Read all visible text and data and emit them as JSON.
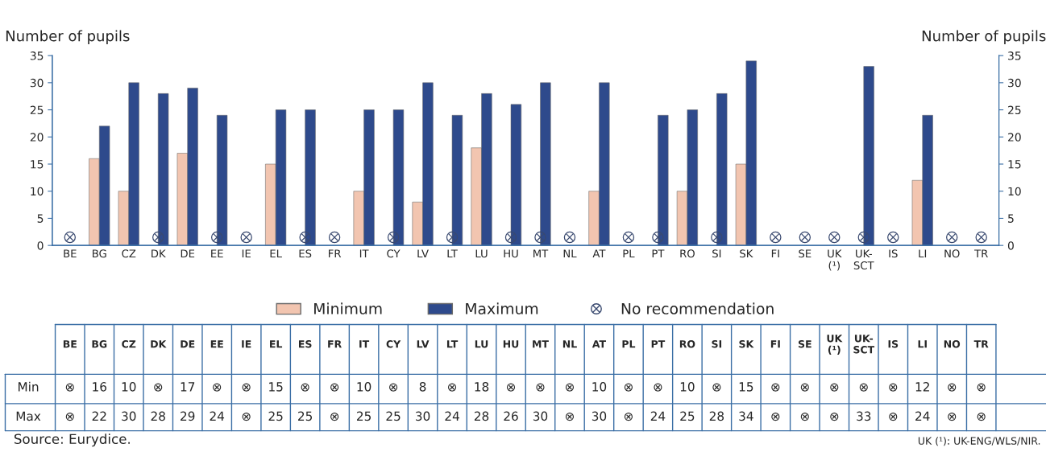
{
  "chart_data": {
    "type": "bar",
    "ylabel": "Number of pupils",
    "y2label": "Number of pupils",
    "categories": [
      "BE",
      "BG",
      "CZ",
      "DK",
      "DE",
      "EE",
      "IE",
      "EL",
      "ES",
      "FR",
      "IT",
      "CY",
      "LV",
      "LT",
      "LU",
      "HU",
      "MT",
      "NL",
      "AT",
      "PL",
      "PT",
      "RO",
      "SI",
      "SK",
      "FI",
      "SE",
      "UK (¹)",
      "UK-SCT",
      "IS",
      "LI",
      "NO",
      "TR"
    ],
    "series": [
      {
        "name": "Minimum",
        "color": "#f2c5b0",
        "values": [
          null,
          16,
          10,
          null,
          17,
          null,
          null,
          15,
          null,
          null,
          10,
          null,
          8,
          null,
          18,
          null,
          null,
          null,
          10,
          null,
          null,
          10,
          null,
          15,
          null,
          null,
          null,
          null,
          null,
          12,
          null,
          null
        ],
        "value_labels": [
          "⊗",
          "16",
          "10",
          "⊗",
          "17",
          "⊗",
          "⊗",
          "15",
          "⊗",
          "⊗",
          "10",
          "⊗",
          "8",
          "⊗",
          "18",
          "⊗",
          "⊗",
          "⊗",
          "10",
          "⊗",
          "⊗",
          "10",
          "⊗",
          "15",
          "⊗",
          "⊗",
          "⊗",
          "⊗",
          "⊗",
          "12",
          "⊗",
          "⊗"
        ]
      },
      {
        "name": "Maximum",
        "color": "#2e4a8c",
        "values": [
          null,
          22,
          30,
          28,
          29,
          24,
          null,
          25,
          25,
          null,
          25,
          25,
          30,
          24,
          28,
          26,
          30,
          null,
          30,
          null,
          24,
          25,
          28,
          34,
          null,
          null,
          null,
          33,
          null,
          24,
          null,
          null
        ],
        "value_labels": [
          "⊗",
          "22",
          "30",
          "28",
          "29",
          "24",
          "⊗",
          "25",
          "25",
          "⊗",
          "25",
          "25",
          "30",
          "24",
          "28",
          "26",
          "30",
          "⊗",
          "30",
          "⊗",
          "24",
          "25",
          "28",
          "34",
          "⊗",
          "⊗",
          "⊗",
          "33",
          "⊗",
          "24",
          "⊗",
          "⊗"
        ]
      },
      {
        "name": "No recommendation",
        "type": "scatter",
        "color": "#3a4a70",
        "values": [
          1.5,
          null,
          null,
          1.5,
          null,
          1.5,
          1.5,
          null,
          1.5,
          1.5,
          null,
          1.5,
          null,
          1.5,
          null,
          1.5,
          1.5,
          1.5,
          null,
          1.5,
          1.5,
          null,
          1.5,
          null,
          1.5,
          1.5,
          1.5,
          1.5,
          1.5,
          null,
          1.5,
          1.5
        ]
      }
    ],
    "ylim": [
      0,
      35
    ],
    "yticks": [
      0,
      5,
      10,
      15,
      20,
      25,
      30,
      35
    ],
    "y2lim": [
      0,
      35
    ],
    "y2ticks": [
      0,
      5,
      10,
      15,
      20,
      25,
      30,
      35
    ],
    "legend": "bottom",
    "grid": false,
    "annotations": [
      "Source: Eurydice.",
      "UK (¹): UK-ENG/WLS/NIR.",
      "Min",
      "Max"
    ]
  }
}
